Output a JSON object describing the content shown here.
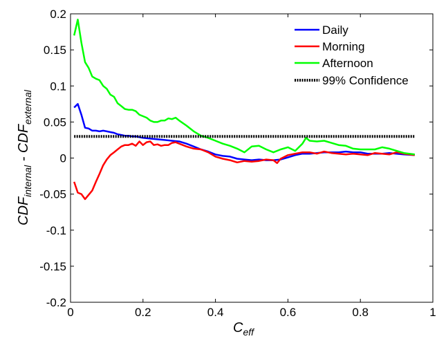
{
  "chart_data": {
    "type": "line",
    "title": "",
    "xlabel": {
      "main": "C",
      "sub": "eff"
    },
    "ylabel": {
      "main1": "CDF",
      "sub1": "internal",
      "sep": " - ",
      "main2": "CDF",
      "sub2": "external"
    },
    "xlim": [
      0,
      1
    ],
    "ylim": [
      -0.2,
      0.2
    ],
    "xticks": [
      0,
      0.2,
      0.4,
      0.6,
      0.8,
      1
    ],
    "xtick_labels": [
      "0",
      "0.2",
      "0.4",
      "0.6",
      "0.8",
      "1"
    ],
    "yticks": [
      -0.2,
      -0.15,
      -0.1,
      -0.05,
      0,
      0.05,
      0.1,
      0.15,
      0.2
    ],
    "ytick_labels": [
      "-0.2",
      "-0.15",
      "-0.1",
      "-0.05",
      "0",
      "0.05",
      "0.1",
      "0.15",
      "0.2"
    ],
    "grid": false,
    "legend_position": "top-right",
    "series": [
      {
        "name": "Daily",
        "color": "#0000ff",
        "style": "solid",
        "x": [
          0.01,
          0.02,
          0.03,
          0.04,
          0.05,
          0.06,
          0.07,
          0.08,
          0.09,
          0.1,
          0.11,
          0.12,
          0.13,
          0.14,
          0.15,
          0.16,
          0.17,
          0.18,
          0.19,
          0.2,
          0.22,
          0.24,
          0.26,
          0.28,
          0.3,
          0.32,
          0.34,
          0.36,
          0.38,
          0.4,
          0.42,
          0.44,
          0.46,
          0.48,
          0.5,
          0.52,
          0.54,
          0.56,
          0.58,
          0.6,
          0.62,
          0.64,
          0.66,
          0.68,
          0.7,
          0.72,
          0.74,
          0.76,
          0.78,
          0.8,
          0.82,
          0.84,
          0.86,
          0.88,
          0.9,
          0.92,
          0.95
        ],
        "y": [
          0.07,
          0.075,
          0.06,
          0.042,
          0.041,
          0.038,
          0.038,
          0.037,
          0.038,
          0.037,
          0.036,
          0.035,
          0.033,
          0.032,
          0.031,
          0.031,
          0.03,
          0.03,
          0.029,
          0.028,
          0.027,
          0.026,
          0.025,
          0.024,
          0.023,
          0.02,
          0.016,
          0.012,
          0.009,
          0.005,
          0.003,
          0.002,
          -0.001,
          -0.002,
          -0.003,
          -0.002,
          -0.003,
          -0.003,
          -0.002,
          0.001,
          0.004,
          0.006,
          0.006,
          0.007,
          0.008,
          0.008,
          0.008,
          0.009,
          0.008,
          0.008,
          0.006,
          0.006,
          0.006,
          0.007,
          0.006,
          0.005,
          0.004
        ]
      },
      {
        "name": "Morning",
        "color": "#ff0000",
        "style": "solid",
        "x": [
          0.01,
          0.02,
          0.03,
          0.04,
          0.05,
          0.06,
          0.07,
          0.08,
          0.09,
          0.1,
          0.11,
          0.12,
          0.13,
          0.14,
          0.15,
          0.16,
          0.17,
          0.18,
          0.19,
          0.2,
          0.21,
          0.22,
          0.23,
          0.24,
          0.25,
          0.26,
          0.27,
          0.28,
          0.29,
          0.3,
          0.32,
          0.34,
          0.36,
          0.38,
          0.4,
          0.42,
          0.44,
          0.46,
          0.48,
          0.5,
          0.52,
          0.54,
          0.56,
          0.57,
          0.58,
          0.6,
          0.62,
          0.64,
          0.66,
          0.68,
          0.7,
          0.72,
          0.74,
          0.76,
          0.78,
          0.8,
          0.82,
          0.84,
          0.86,
          0.88,
          0.9,
          0.92,
          0.95
        ],
        "y": [
          -0.033,
          -0.048,
          -0.05,
          -0.057,
          -0.051,
          -0.045,
          -0.033,
          -0.022,
          -0.01,
          -0.002,
          0.004,
          0.008,
          0.012,
          0.016,
          0.018,
          0.018,
          0.02,
          0.017,
          0.023,
          0.018,
          0.022,
          0.023,
          0.018,
          0.019,
          0.017,
          0.018,
          0.018,
          0.021,
          0.022,
          0.02,
          0.016,
          0.013,
          0.012,
          0.008,
          0.002,
          -0.001,
          -0.003,
          -0.006,
          -0.004,
          -0.005,
          -0.004,
          -0.002,
          -0.003,
          -0.007,
          -0.001,
          0.004,
          0.006,
          0.008,
          0.008,
          0.006,
          0.009,
          0.007,
          0.006,
          0.005,
          0.006,
          0.005,
          0.004,
          0.007,
          0.006,
          0.005,
          0.008,
          0.006,
          0.004
        ]
      },
      {
        "name": "Afternoon",
        "color": "#00ff00",
        "style": "solid",
        "x": [
          0.01,
          0.02,
          0.03,
          0.04,
          0.05,
          0.06,
          0.07,
          0.08,
          0.09,
          0.1,
          0.11,
          0.12,
          0.13,
          0.14,
          0.15,
          0.16,
          0.17,
          0.18,
          0.19,
          0.2,
          0.21,
          0.22,
          0.23,
          0.24,
          0.25,
          0.26,
          0.27,
          0.28,
          0.29,
          0.3,
          0.32,
          0.34,
          0.36,
          0.38,
          0.4,
          0.42,
          0.44,
          0.46,
          0.48,
          0.5,
          0.52,
          0.54,
          0.56,
          0.58,
          0.6,
          0.62,
          0.64,
          0.65,
          0.66,
          0.68,
          0.7,
          0.72,
          0.74,
          0.76,
          0.78,
          0.8,
          0.82,
          0.84,
          0.86,
          0.88,
          0.9,
          0.92,
          0.95
        ],
        "y": [
          0.17,
          0.192,
          0.16,
          0.133,
          0.125,
          0.113,
          0.11,
          0.108,
          0.1,
          0.096,
          0.088,
          0.085,
          0.076,
          0.072,
          0.068,
          0.067,
          0.067,
          0.065,
          0.06,
          0.058,
          0.056,
          0.052,
          0.05,
          0.05,
          0.052,
          0.052,
          0.055,
          0.054,
          0.056,
          0.052,
          0.045,
          0.037,
          0.031,
          0.028,
          0.024,
          0.02,
          0.017,
          0.013,
          0.008,
          0.016,
          0.017,
          0.012,
          0.008,
          0.012,
          0.015,
          0.01,
          0.02,
          0.028,
          0.024,
          0.023,
          0.024,
          0.021,
          0.018,
          0.017,
          0.013,
          0.012,
          0.012,
          0.012,
          0.015,
          0.013,
          0.01,
          0.007,
          0.005
        ]
      },
      {
        "name": "99% Confidence",
        "color": "#000000",
        "style": "dotted",
        "x": [
          0.01,
          0.95
        ],
        "y": [
          0.03,
          0.03
        ]
      }
    ]
  }
}
